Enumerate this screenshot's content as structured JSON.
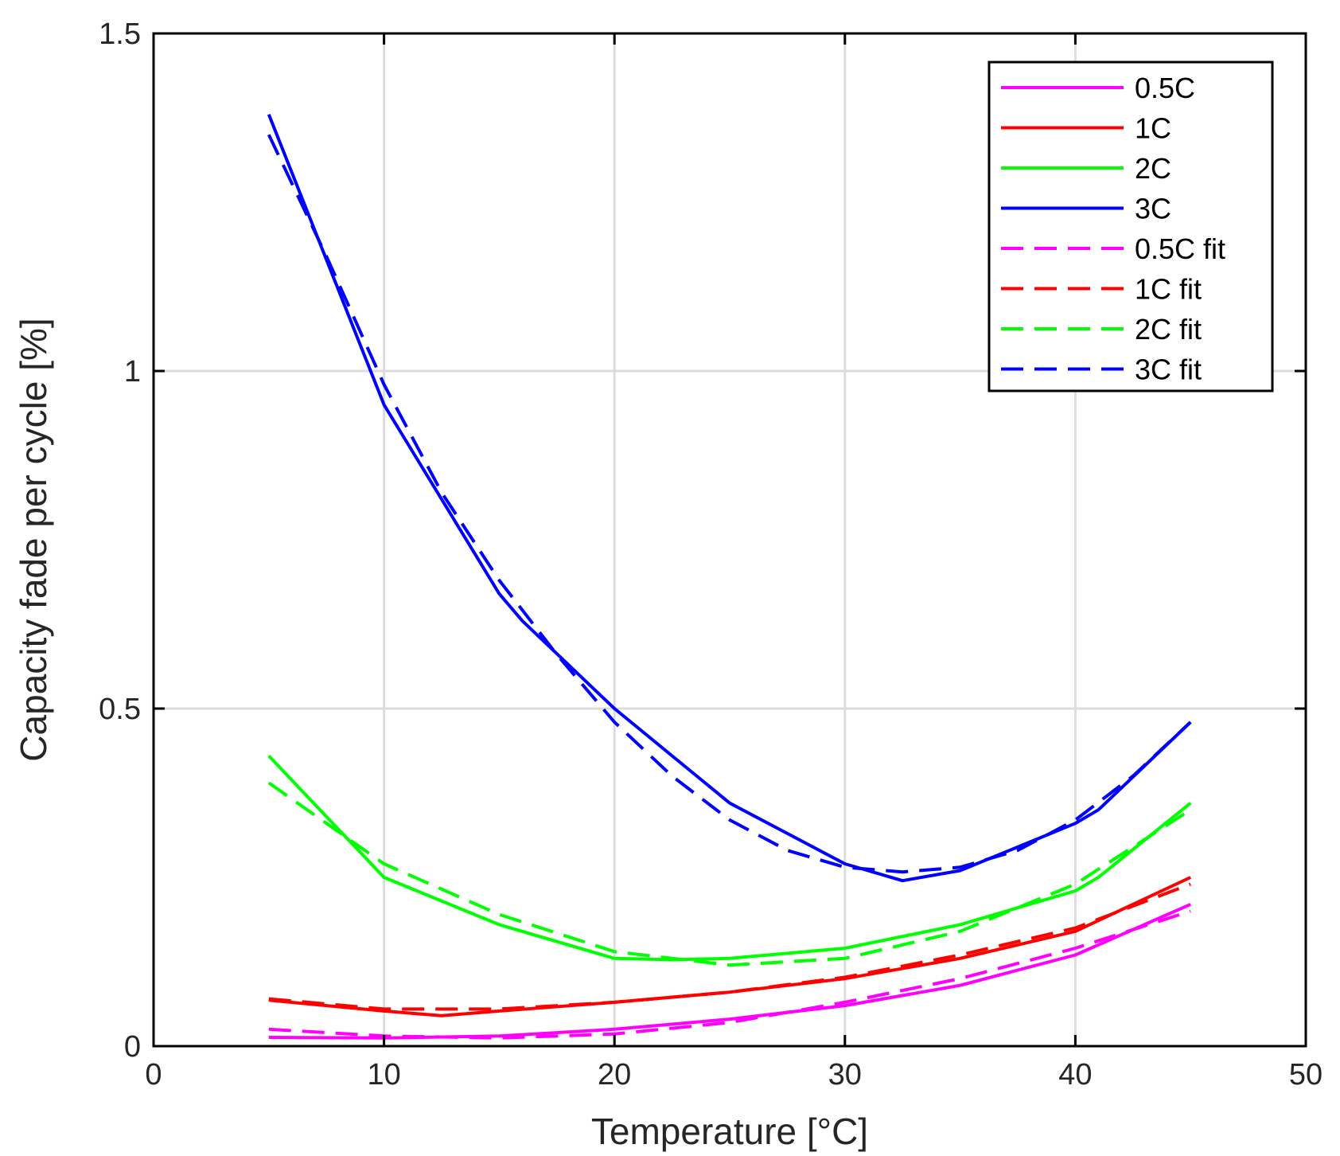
{
  "chart_data": {
    "type": "line",
    "title": "",
    "xlabel": "Temperature [°C]",
    "ylabel": "Capacity fade per cycle [%]",
    "xlim": [
      0,
      50
    ],
    "ylim": [
      0,
      1.5
    ],
    "xticks": [
      0,
      10,
      20,
      30,
      40,
      50
    ],
    "xtick_labels": [
      "0",
      "10",
      "20",
      "30",
      "40",
      "50"
    ],
    "yticks": [
      0,
      0.5,
      1,
      1.5
    ],
    "ytick_labels": [
      "0",
      "0.5",
      "1",
      "1.5"
    ],
    "grid": true,
    "legend_position": "top-right",
    "series": [
      {
        "name": "0.5C",
        "color": "#ff00ff",
        "style": "solid",
        "x": [
          5,
          10,
          15,
          20,
          25,
          30,
          35,
          40,
          45
        ],
        "y": [
          0.013,
          0.012,
          0.015,
          0.025,
          0.04,
          0.06,
          0.09,
          0.135,
          0.21
        ]
      },
      {
        "name": "1C",
        "color": "#ff0000",
        "style": "solid",
        "x": [
          5,
          10,
          12.5,
          15,
          20,
          25,
          30,
          35,
          40,
          45
        ],
        "y": [
          0.068,
          0.052,
          0.045,
          0.052,
          0.065,
          0.08,
          0.1,
          0.13,
          0.17,
          0.25
        ]
      },
      {
        "name": "2C",
        "color": "#00ff00",
        "style": "solid",
        "x": [
          5,
          10,
          15,
          20,
          22.5,
          25,
          30,
          35,
          40,
          41,
          45
        ],
        "y": [
          0.43,
          0.25,
          0.18,
          0.13,
          0.128,
          0.13,
          0.145,
          0.18,
          0.23,
          0.25,
          0.36
        ]
      },
      {
        "name": "3C",
        "color": "#0000ff",
        "style": "solid",
        "x": [
          5,
          10,
          15,
          16,
          20,
          25,
          30,
          32.5,
          35,
          40,
          41,
          45
        ],
        "y": [
          1.38,
          0.95,
          0.67,
          0.63,
          0.5,
          0.36,
          0.27,
          0.245,
          0.26,
          0.33,
          0.35,
          0.48
        ]
      },
      {
        "name": "0.5C fit",
        "color": "#ff00ff",
        "style": "dashed",
        "x": [
          5,
          10,
          15,
          20,
          25,
          30,
          35,
          40,
          45
        ],
        "y": [
          0.025,
          0.015,
          0.012,
          0.018,
          0.035,
          0.065,
          0.1,
          0.145,
          0.2
        ]
      },
      {
        "name": "1C fit",
        "color": "#ff0000",
        "style": "dashed",
        "x": [
          5,
          10,
          15,
          20,
          25,
          30,
          35,
          40,
          45
        ],
        "y": [
          0.07,
          0.055,
          0.055,
          0.065,
          0.08,
          0.102,
          0.135,
          0.175,
          0.24
        ]
      },
      {
        "name": "2C fit",
        "color": "#00ff00",
        "style": "dashed",
        "x": [
          5,
          10,
          15,
          20,
          25,
          30,
          35,
          40,
          45
        ],
        "y": [
          0.39,
          0.27,
          0.195,
          0.14,
          0.12,
          0.13,
          0.17,
          0.24,
          0.35
        ]
      },
      {
        "name": "3C fit",
        "color": "#0000ff",
        "style": "dashed",
        "x": [
          5,
          7.5,
          10,
          12.5,
          15,
          17.5,
          20,
          22.5,
          25,
          27.5,
          30,
          32.5,
          35,
          37.5,
          40,
          42.5,
          45
        ],
        "y": [
          1.35,
          1.17,
          0.98,
          0.82,
          0.69,
          0.58,
          0.48,
          0.4,
          0.335,
          0.29,
          0.265,
          0.258,
          0.265,
          0.29,
          0.335,
          0.4,
          0.48
        ]
      }
    ]
  }
}
